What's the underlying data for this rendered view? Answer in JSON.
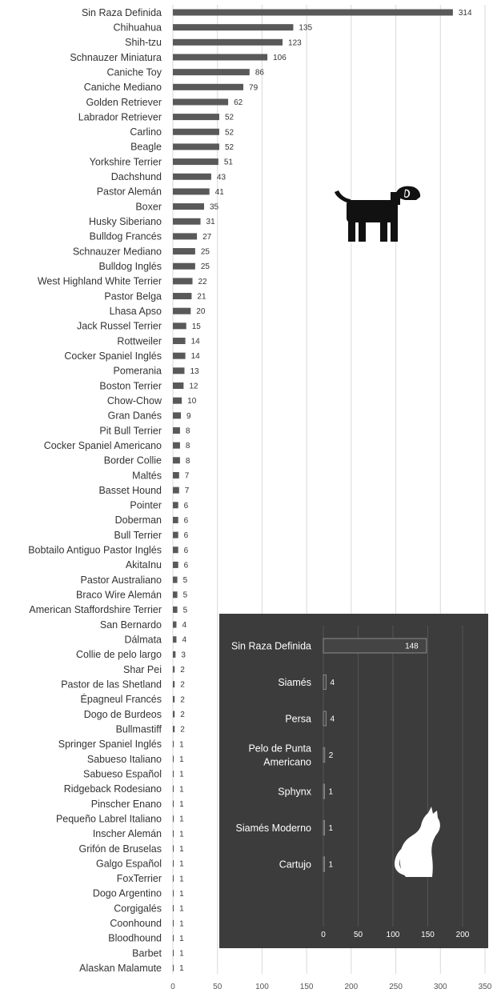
{
  "chart_data": [
    {
      "type": "bar",
      "orientation": "horizontal",
      "icon": "dog-icon",
      "categories": [
        "Sin Raza Definida",
        "Chihuahua",
        "Shih-tzu",
        "Schnauzer Miniatura",
        "Caniche Toy",
        "Caniche Mediano",
        "Golden Retriever",
        "Labrador Retriever",
        "Carlino",
        "Beagle",
        "Yorkshire Terrier",
        "Dachshund",
        "Pastor Alemán",
        "Boxer",
        "Husky Siberiano",
        "Bulldog Francés",
        "Schnauzer Mediano",
        "Bulldog Inglés",
        "West Highland White Terrier",
        "Pastor Belga",
        "Lhasa Apso",
        "Jack Russel Terrier",
        "Rottweiler",
        "Cocker Spaniel Inglés",
        "Pomerania",
        "Boston Terrier",
        "Chow-Chow",
        "Gran Danés",
        "Pit Bull Terrier",
        "Cocker Spaniel Americano",
        "Border Collie",
        "Maltés",
        "Basset Hound",
        "Pointer",
        "Doberman",
        "Bull Terrier",
        "Bobtailo Antiguo Pastor Inglés",
        "AkitaInu",
        "Pastor Australiano",
        "Braco Wire Alemán",
        "American Staffordshire Terrier",
        "San Bernardo",
        "Dálmata",
        "Collie de pelo largo",
        "Shar Pei",
        "Pastor de las Shetland",
        "Épagneul Francés",
        "Dogo de Burdeos",
        "Bullmastiff",
        "Springer Spaniel Inglés",
        "Sabueso Italiano",
        "Sabueso Español",
        "Ridgeback Rodesiano",
        "Pinscher Enano",
        "Pequeño Labrel Italiano",
        "Inscher Alemán",
        "Grifón de Bruselas",
        "Galgo Español",
        "FoxTerrier",
        "Dogo Argentino",
        "Corgigalés",
        "Coonhound",
        "Bloodhound",
        "Barbet",
        "Alaskan Malamute"
      ],
      "values": [
        314,
        135,
        123,
        106,
        86,
        79,
        62,
        52,
        52,
        52,
        51,
        43,
        41,
        35,
        31,
        27,
        25,
        25,
        22,
        21,
        20,
        15,
        14,
        14,
        13,
        12,
        10,
        9,
        8,
        8,
        8,
        7,
        7,
        6,
        6,
        6,
        6,
        6,
        5,
        5,
        5,
        4,
        4,
        3,
        2,
        2,
        2,
        2,
        2,
        1,
        1,
        1,
        1,
        1,
        1,
        1,
        1,
        1,
        1,
        1,
        1,
        1,
        1,
        1,
        1
      ],
      "xticks": [
        "0",
        "50",
        "100",
        "150",
        "200",
        "250",
        "300",
        "350"
      ],
      "xlim": [
        0,
        350
      ],
      "grid": true,
      "colors": {
        "bar": "#595959",
        "grid": "#d9d9d9",
        "text": "#333333"
      }
    },
    {
      "type": "bar",
      "orientation": "horizontal",
      "icon": "cat-icon",
      "categories": [
        "Sin Raza Definida",
        "Siamés",
        "Persa",
        "Pelo de Punta Americano",
        "Sphynx",
        "Siamés Moderno",
        "Cartujo"
      ],
      "category_lines": [
        [
          "Sin Raza Definida"
        ],
        [
          "Siamés"
        ],
        [
          "Persa"
        ],
        [
          "Pelo de Punta",
          "Americano"
        ],
        [
          "Sphynx"
        ],
        [
          "Siamés Moderno"
        ],
        [
          "Cartujo"
        ]
      ],
      "values": [
        148,
        4,
        4,
        2,
        1,
        1,
        1
      ],
      "xticks": [
        "0",
        "50",
        "100",
        "150",
        "200"
      ],
      "xlim": [
        0,
        200
      ],
      "grid": true,
      "colors": {
        "background": "#3c3c3c",
        "bar": "#444444",
        "bar_stroke": "#8a8a8a",
        "grid": "#555555",
        "text": "#ffffff"
      }
    }
  ]
}
